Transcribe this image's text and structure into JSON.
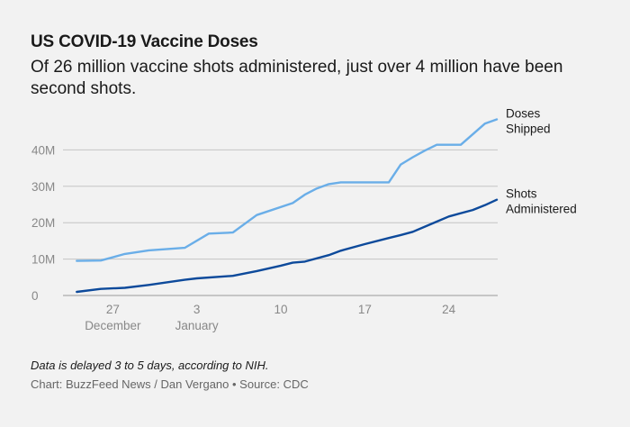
{
  "header": {
    "title": "US COVID-19 Vaccine Doses",
    "subtitle": "Of 26 million vaccine shots administered, just over 4 million have been second shots."
  },
  "footer": {
    "note": "Data is delayed 3 to 5 days, according to NIH.",
    "credit": "Chart: BuzzFeed News / Dan Vergano • Source: CDC"
  },
  "colors": {
    "shipped": "#6aaee8",
    "administered": "#0d4a9b",
    "grid": "#c4c4c4",
    "baseline": "#9a9a9a"
  },
  "chart_data": {
    "type": "line",
    "title": "US COVID-19 Vaccine Doses",
    "xlabel": "",
    "ylabel": "",
    "ylim": [
      0,
      50
    ],
    "y_unit": "M",
    "y_ticks": [
      {
        "value": 0,
        "label": "0"
      },
      {
        "value": 10,
        "label": "10M"
      },
      {
        "value": 20,
        "label": "20M"
      },
      {
        "value": 30,
        "label": "30M"
      },
      {
        "value": 40,
        "label": "40M"
      }
    ],
    "x_range": [
      "2020-12-23",
      "2021-01-28"
    ],
    "x_ticks": [
      {
        "date": "2020-12-27",
        "label": "27",
        "sublabel": "December"
      },
      {
        "date": "2021-01-03",
        "label": "3",
        "sublabel": "January"
      },
      {
        "date": "2021-01-10",
        "label": "10",
        "sublabel": ""
      },
      {
        "date": "2021-01-17",
        "label": "17",
        "sublabel": ""
      },
      {
        "date": "2021-01-24",
        "label": "24",
        "sublabel": ""
      }
    ],
    "grid": true,
    "legend": "direct labels at right end of lines",
    "series": [
      {
        "name": "Doses Shipped",
        "label_lines": [
          "Doses",
          "Shipped"
        ],
        "color_key": "shipped",
        "points": [
          {
            "x": "2020-12-24",
            "y": 9.5
          },
          {
            "x": "2020-12-26",
            "y": 9.6
          },
          {
            "x": "2020-12-28",
            "y": 11.4
          },
          {
            "x": "2020-12-30",
            "y": 12.4
          },
          {
            "x": "2021-01-02",
            "y": 13.1
          },
          {
            "x": "2021-01-04",
            "y": 17.0
          },
          {
            "x": "2021-01-06",
            "y": 17.3
          },
          {
            "x": "2021-01-08",
            "y": 22.1
          },
          {
            "x": "2021-01-11",
            "y": 25.4
          },
          {
            "x": "2021-01-12",
            "y": 27.7
          },
          {
            "x": "2021-01-13",
            "y": 29.4
          },
          {
            "x": "2021-01-14",
            "y": 30.6
          },
          {
            "x": "2021-01-15",
            "y": 31.1
          },
          {
            "x": "2021-01-19",
            "y": 31.1
          },
          {
            "x": "2021-01-20",
            "y": 36.0
          },
          {
            "x": "2021-01-21",
            "y": 38.0
          },
          {
            "x": "2021-01-22",
            "y": 39.8
          },
          {
            "x": "2021-01-23",
            "y": 41.4
          },
          {
            "x": "2021-01-25",
            "y": 41.4
          },
          {
            "x": "2021-01-27",
            "y": 47.2
          },
          {
            "x": "2021-01-28",
            "y": 48.4
          }
        ]
      },
      {
        "name": "Shots Administered",
        "label_lines": [
          "Shots",
          "Administered"
        ],
        "color_key": "administered",
        "points": [
          {
            "x": "2020-12-24",
            "y": 1.0
          },
          {
            "x": "2020-12-26",
            "y": 1.8
          },
          {
            "x": "2020-12-28",
            "y": 2.1
          },
          {
            "x": "2020-12-30",
            "y": 2.9
          },
          {
            "x": "2021-01-02",
            "y": 4.3
          },
          {
            "x": "2021-01-03",
            "y": 4.7
          },
          {
            "x": "2021-01-06",
            "y": 5.4
          },
          {
            "x": "2021-01-08",
            "y": 6.7
          },
          {
            "x": "2021-01-10",
            "y": 8.2
          },
          {
            "x": "2021-01-11",
            "y": 9.0
          },
          {
            "x": "2021-01-12",
            "y": 9.3
          },
          {
            "x": "2021-01-14",
            "y": 11.1
          },
          {
            "x": "2021-01-15",
            "y": 12.3
          },
          {
            "x": "2021-01-17",
            "y": 14.1
          },
          {
            "x": "2021-01-19",
            "y": 15.8
          },
          {
            "x": "2021-01-20",
            "y": 16.6
          },
          {
            "x": "2021-01-21",
            "y": 17.5
          },
          {
            "x": "2021-01-23",
            "y": 20.3
          },
          {
            "x": "2021-01-24",
            "y": 21.7
          },
          {
            "x": "2021-01-26",
            "y": 23.5
          },
          {
            "x": "2021-01-27",
            "y": 24.8
          },
          {
            "x": "2021-01-28",
            "y": 26.3
          }
        ]
      }
    ]
  }
}
